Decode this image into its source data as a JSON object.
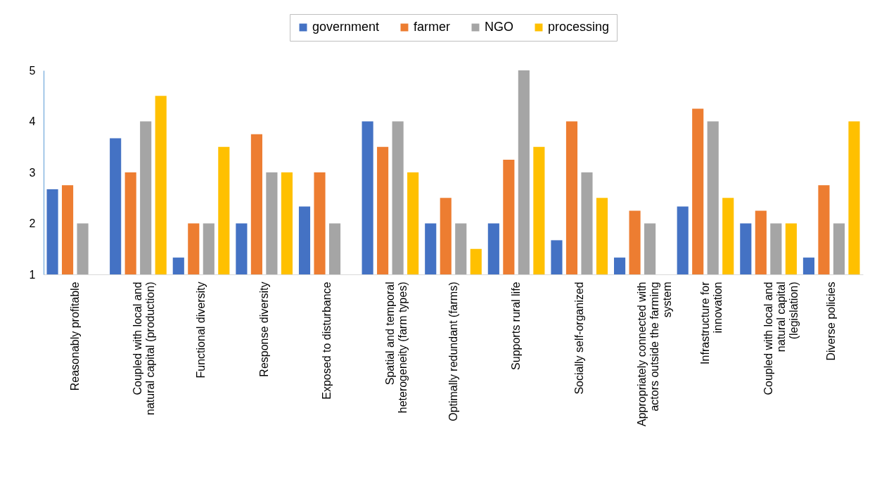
{
  "chart_data": {
    "type": "bar",
    "categories": [
      "Reasonably profitable",
      "Coupled with local and natural capital (production)",
      "Functional diversity",
      "Response diversity",
      "Exposed to disturbance",
      "Spatial and temporal heterogeneity (farm types)",
      "Optimally redundant (farms)",
      "Supports rural life",
      "Socially self-organized",
      "Appropriately connected with actors outside the farming system",
      "Infrastructure for innovation",
      "Coupled with local and natural capital (legislation)",
      "Diverse policies"
    ],
    "series": [
      {
        "name": "government",
        "color": "#4472c4",
        "values": [
          2.67,
          3.67,
          1.33,
          2,
          2.33,
          4,
          2,
          2,
          1.67,
          1.33,
          2.33,
          2,
          1.33
        ]
      },
      {
        "name": "farmer",
        "color": "#ed7d31",
        "values": [
          2.75,
          3,
          2,
          3.75,
          3,
          3.5,
          2.5,
          3.25,
          4,
          2.25,
          4.25,
          2.25,
          2.75
        ]
      },
      {
        "name": "NGO",
        "color": "#a5a5a5",
        "values": [
          2,
          4,
          2,
          3,
          2,
          4,
          2,
          5,
          3,
          2,
          4,
          2,
          2
        ]
      },
      {
        "name": "processing",
        "color": "#ffc000",
        "values": [
          null,
          4.5,
          3.5,
          3,
          null,
          3,
          1.5,
          3.5,
          2.5,
          null,
          2.5,
          2,
          4
        ]
      }
    ],
    "ylim": [
      1,
      5
    ],
    "yticks": [
      1,
      2,
      3,
      4,
      5
    ],
    "grid": false,
    "legend": "top"
  }
}
